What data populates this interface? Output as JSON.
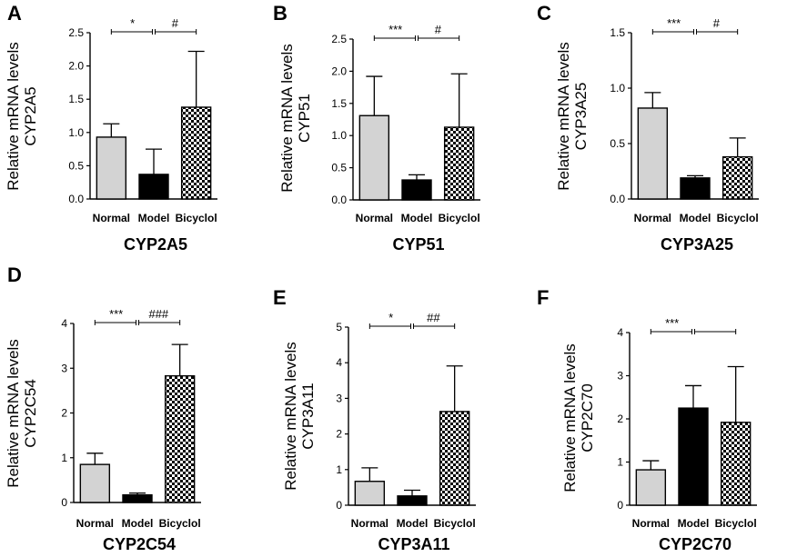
{
  "chart_data": [
    {
      "type": "bar",
      "panel": "A",
      "title": "CYP2A5",
      "ylabel": [
        "Relative mRNA levels",
        "CYP2A5"
      ],
      "categories": [
        "Normal",
        "Model",
        "Bicyclol"
      ],
      "values": [
        0.93,
        0.37,
        1.38
      ],
      "errors": [
        0.2,
        0.38,
        0.84
      ],
      "ylim": [
        0,
        2.5
      ],
      "yticks": [
        0,
        0.5,
        1.0,
        1.5,
        2.0,
        2.5
      ],
      "ytick_labels": [
        "0.0",
        "0.5",
        "1.0",
        "1.5",
        "2.0",
        "2.5"
      ],
      "significance": [
        "*",
        "#"
      ]
    },
    {
      "type": "bar",
      "panel": "B",
      "title": "CYP51",
      "ylabel": [
        "Relative mRNA levels",
        "CYP51"
      ],
      "categories": [
        "Normal",
        "Model",
        "Bicyclol"
      ],
      "values": [
        1.31,
        0.31,
        1.13
      ],
      "errors": [
        0.61,
        0.08,
        0.83
      ],
      "ylim": [
        0,
        2.5
      ],
      "yticks": [
        0,
        0.5,
        1.0,
        1.5,
        2.0,
        2.5
      ],
      "ytick_labels": [
        "0.0",
        "0.5",
        "1.0",
        "1.5",
        "2.0",
        "2.5"
      ],
      "significance": [
        "***",
        "#"
      ]
    },
    {
      "type": "bar",
      "panel": "C",
      "title": "CYP3A25",
      "ylabel": [
        "Relative mRNA levels",
        "CYP3A25"
      ],
      "categories": [
        "Normal",
        "Model",
        "Bicyclol"
      ],
      "values": [
        0.82,
        0.19,
        0.38
      ],
      "errors": [
        0.14,
        0.02,
        0.17
      ],
      "ylim": [
        0,
        1.5
      ],
      "yticks": [
        0,
        0.5,
        1.0,
        1.5
      ],
      "ytick_labels": [
        "0.0",
        "0.5",
        "1.0",
        "1.5"
      ],
      "significance": [
        "***",
        "#"
      ]
    },
    {
      "type": "bar",
      "panel": "D",
      "title": "CYP2C54",
      "ylabel": [
        "Relative mRNA levels",
        "CYP2C54"
      ],
      "categories": [
        "Normal",
        "Model",
        "Bicyclol"
      ],
      "values": [
        0.85,
        0.17,
        2.83
      ],
      "errors": [
        0.25,
        0.04,
        0.7
      ],
      "ylim": [
        0,
        4
      ],
      "yticks": [
        0,
        1,
        2,
        3,
        4
      ],
      "ytick_labels": [
        "0",
        "1",
        "2",
        "3",
        "4"
      ],
      "significance": [
        "***",
        "###"
      ]
    },
    {
      "type": "bar",
      "panel": "E",
      "title": "CYP3A11",
      "ylabel": [
        "Relative mRNA levels",
        "CYP3A11"
      ],
      "categories": [
        "Normal",
        "Model",
        "Bicyclol"
      ],
      "values": [
        0.67,
        0.26,
        2.63
      ],
      "errors": [
        0.38,
        0.16,
        1.28
      ],
      "ylim": [
        0,
        5
      ],
      "yticks": [
        0,
        1,
        2,
        3,
        4,
        5
      ],
      "ytick_labels": [
        "0",
        "1",
        "2",
        "3",
        "4",
        "5"
      ],
      "significance": [
        "*",
        "##"
      ]
    },
    {
      "type": "bar",
      "panel": "F",
      "title": "CYP2C70",
      "ylabel": [
        "Relative mRNA levels",
        "CYP2C70"
      ],
      "categories": [
        "Normal",
        "Model",
        "Bicyclol"
      ],
      "values": [
        0.82,
        2.25,
        1.92
      ],
      "errors": [
        0.21,
        0.52,
        1.29
      ],
      "ylim": [
        0,
        4
      ],
      "yticks": [
        0,
        1,
        2,
        3,
        4
      ],
      "ytick_labels": [
        "0",
        "1",
        "2",
        "3",
        "4"
      ],
      "significance": [
        "***",
        ""
      ]
    }
  ],
  "colors": {
    "normal": "#d3d3d3",
    "model": "#000000",
    "axis": "#000000"
  }
}
